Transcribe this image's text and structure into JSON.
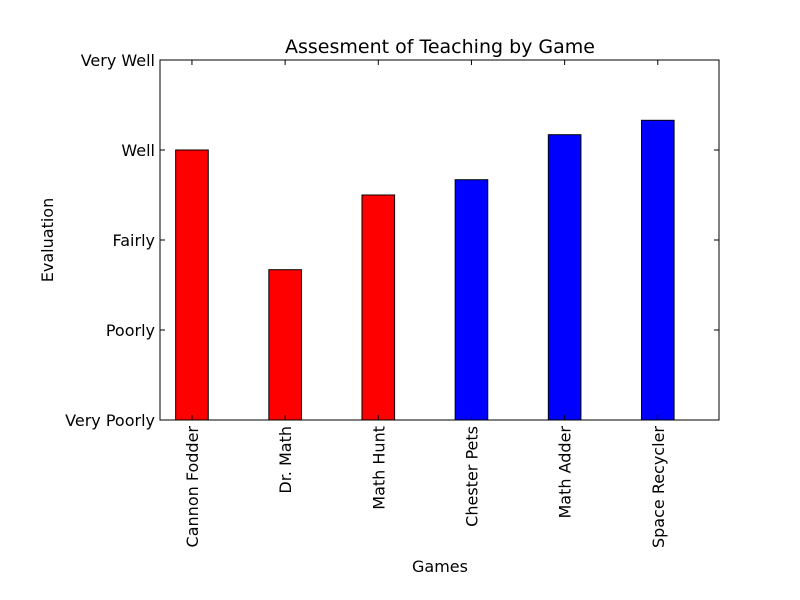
{
  "chart_data": {
    "type": "bar",
    "title": "Assesment of Teaching by Game",
    "xlabel": "Games",
    "ylabel": "Evaluation",
    "categories": [
      "Cannon Fodder",
      "Dr. Math",
      "Math Hunt",
      "Chester Pets",
      "Math Adder",
      "Space Recycler"
    ],
    "values": [
      3.0,
      1.67,
      2.5,
      2.67,
      3.17,
      3.33
    ],
    "bar_colors": [
      "#ff0000",
      "#ff0000",
      "#ff0000",
      "#0000ff",
      "#0000ff",
      "#0000ff"
    ],
    "ylim": [
      0,
      4
    ],
    "yticks": [
      {
        "value": 0,
        "label": "Very Poorly"
      },
      {
        "value": 1,
        "label": "Poorly"
      },
      {
        "value": 2,
        "label": "Fairly"
      },
      {
        "value": 3,
        "label": "Well"
      },
      {
        "value": 4,
        "label": "Very Well"
      }
    ],
    "grid": false,
    "xtick_rotation": "vertical"
  }
}
